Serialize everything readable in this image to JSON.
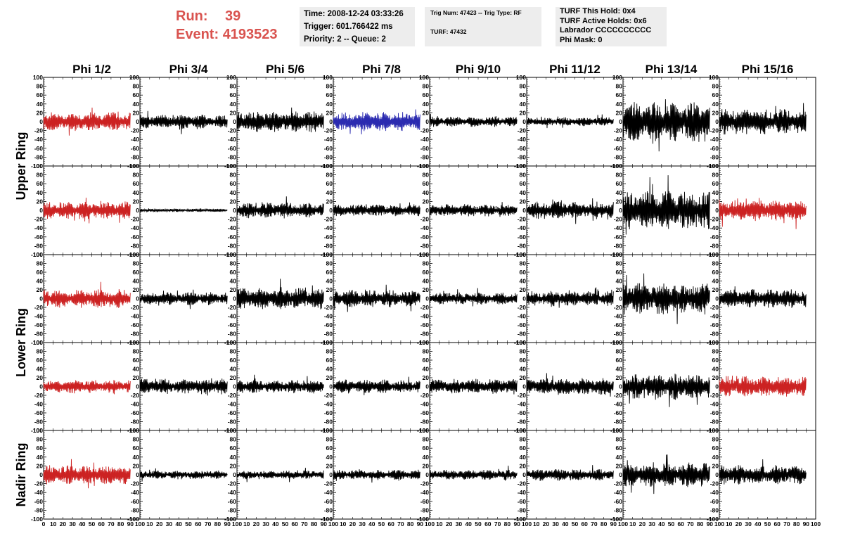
{
  "header": {
    "run_label": "Run:",
    "run_value": "39",
    "event_label": "Event:",
    "event_value": "4193523",
    "time": "Time: 2008-12-24 03:33:26",
    "trigger": "Trigger: 601.766422 ms",
    "priority": "Priority: 2 -- Queue: 2",
    "trig_num": "Trig Num: 47423 -- Trig Type: RF",
    "turf": "TURF: 47432",
    "turf_this_hold": "TURF This Hold: 0x4",
    "turf_active_holds": "TURF Active Holds: 0x6",
    "labrador": "Labrador CCCCCCCCCC",
    "phi_mask": "Phi Mask: 0"
  },
  "colors": {
    "text_red": "#d9534f",
    "trace_black": "#000000",
    "trace_red": "#cc2222",
    "trace_blue": "#2a2ab0",
    "panel_bg": "#ededed"
  },
  "chart_data": {
    "type": "line",
    "columns": [
      "Phi 1/2",
      "Phi 3/4",
      "Phi 5/6",
      "Phi 7/8",
      "Phi 9/10",
      "Phi 11/12",
      "Phi 13/14",
      "Phi 15/16"
    ],
    "ring_labels": [
      {
        "text": "Upper Ring",
        "rows": [
          0,
          1
        ]
      },
      {
        "text": "Lower Ring",
        "rows": [
          2,
          3
        ]
      },
      {
        "text": "Nadir Ring",
        "rows": [
          4,
          4
        ]
      }
    ],
    "ylim": [
      -100,
      100
    ],
    "xlim": [
      0,
      100
    ],
    "yticks": [
      "100",
      "80",
      "60",
      "40",
      "20",
      "0",
      "-20",
      "-40",
      "-60",
      "-80",
      "-100"
    ],
    "xticks": [
      "0",
      "10",
      "20",
      "30",
      "40",
      "50",
      "60",
      "70",
      "80",
      "90",
      "100"
    ],
    "trace_x_range": [
      0,
      90
    ],
    "trace_color_grid": [
      [
        "red",
        "black",
        "black",
        "blue",
        "black",
        "black",
        "black",
        "black"
      ],
      [
        "red",
        "black",
        "black",
        "black",
        "black",
        "black",
        "black",
        "red"
      ],
      [
        "red",
        "black",
        "black",
        "black",
        "black",
        "black",
        "black",
        "black"
      ],
      [
        "red",
        "black",
        "black",
        "black",
        "black",
        "black",
        "black",
        "red"
      ],
      [
        "red",
        "black",
        "black",
        "black",
        "black",
        "black",
        "black",
        "black"
      ]
    ],
    "trace_amplitude_grid": [
      [
        22,
        16,
        25,
        22,
        12,
        10,
        45,
        30
      ],
      [
        20,
        4,
        18,
        14,
        14,
        20,
        45,
        25
      ],
      [
        22,
        15,
        25,
        20,
        14,
        18,
        38,
        22
      ],
      [
        16,
        18,
        16,
        16,
        18,
        20,
        30,
        24
      ],
      [
        22,
        10,
        10,
        12,
        12,
        14,
        28,
        22
      ]
    ]
  }
}
